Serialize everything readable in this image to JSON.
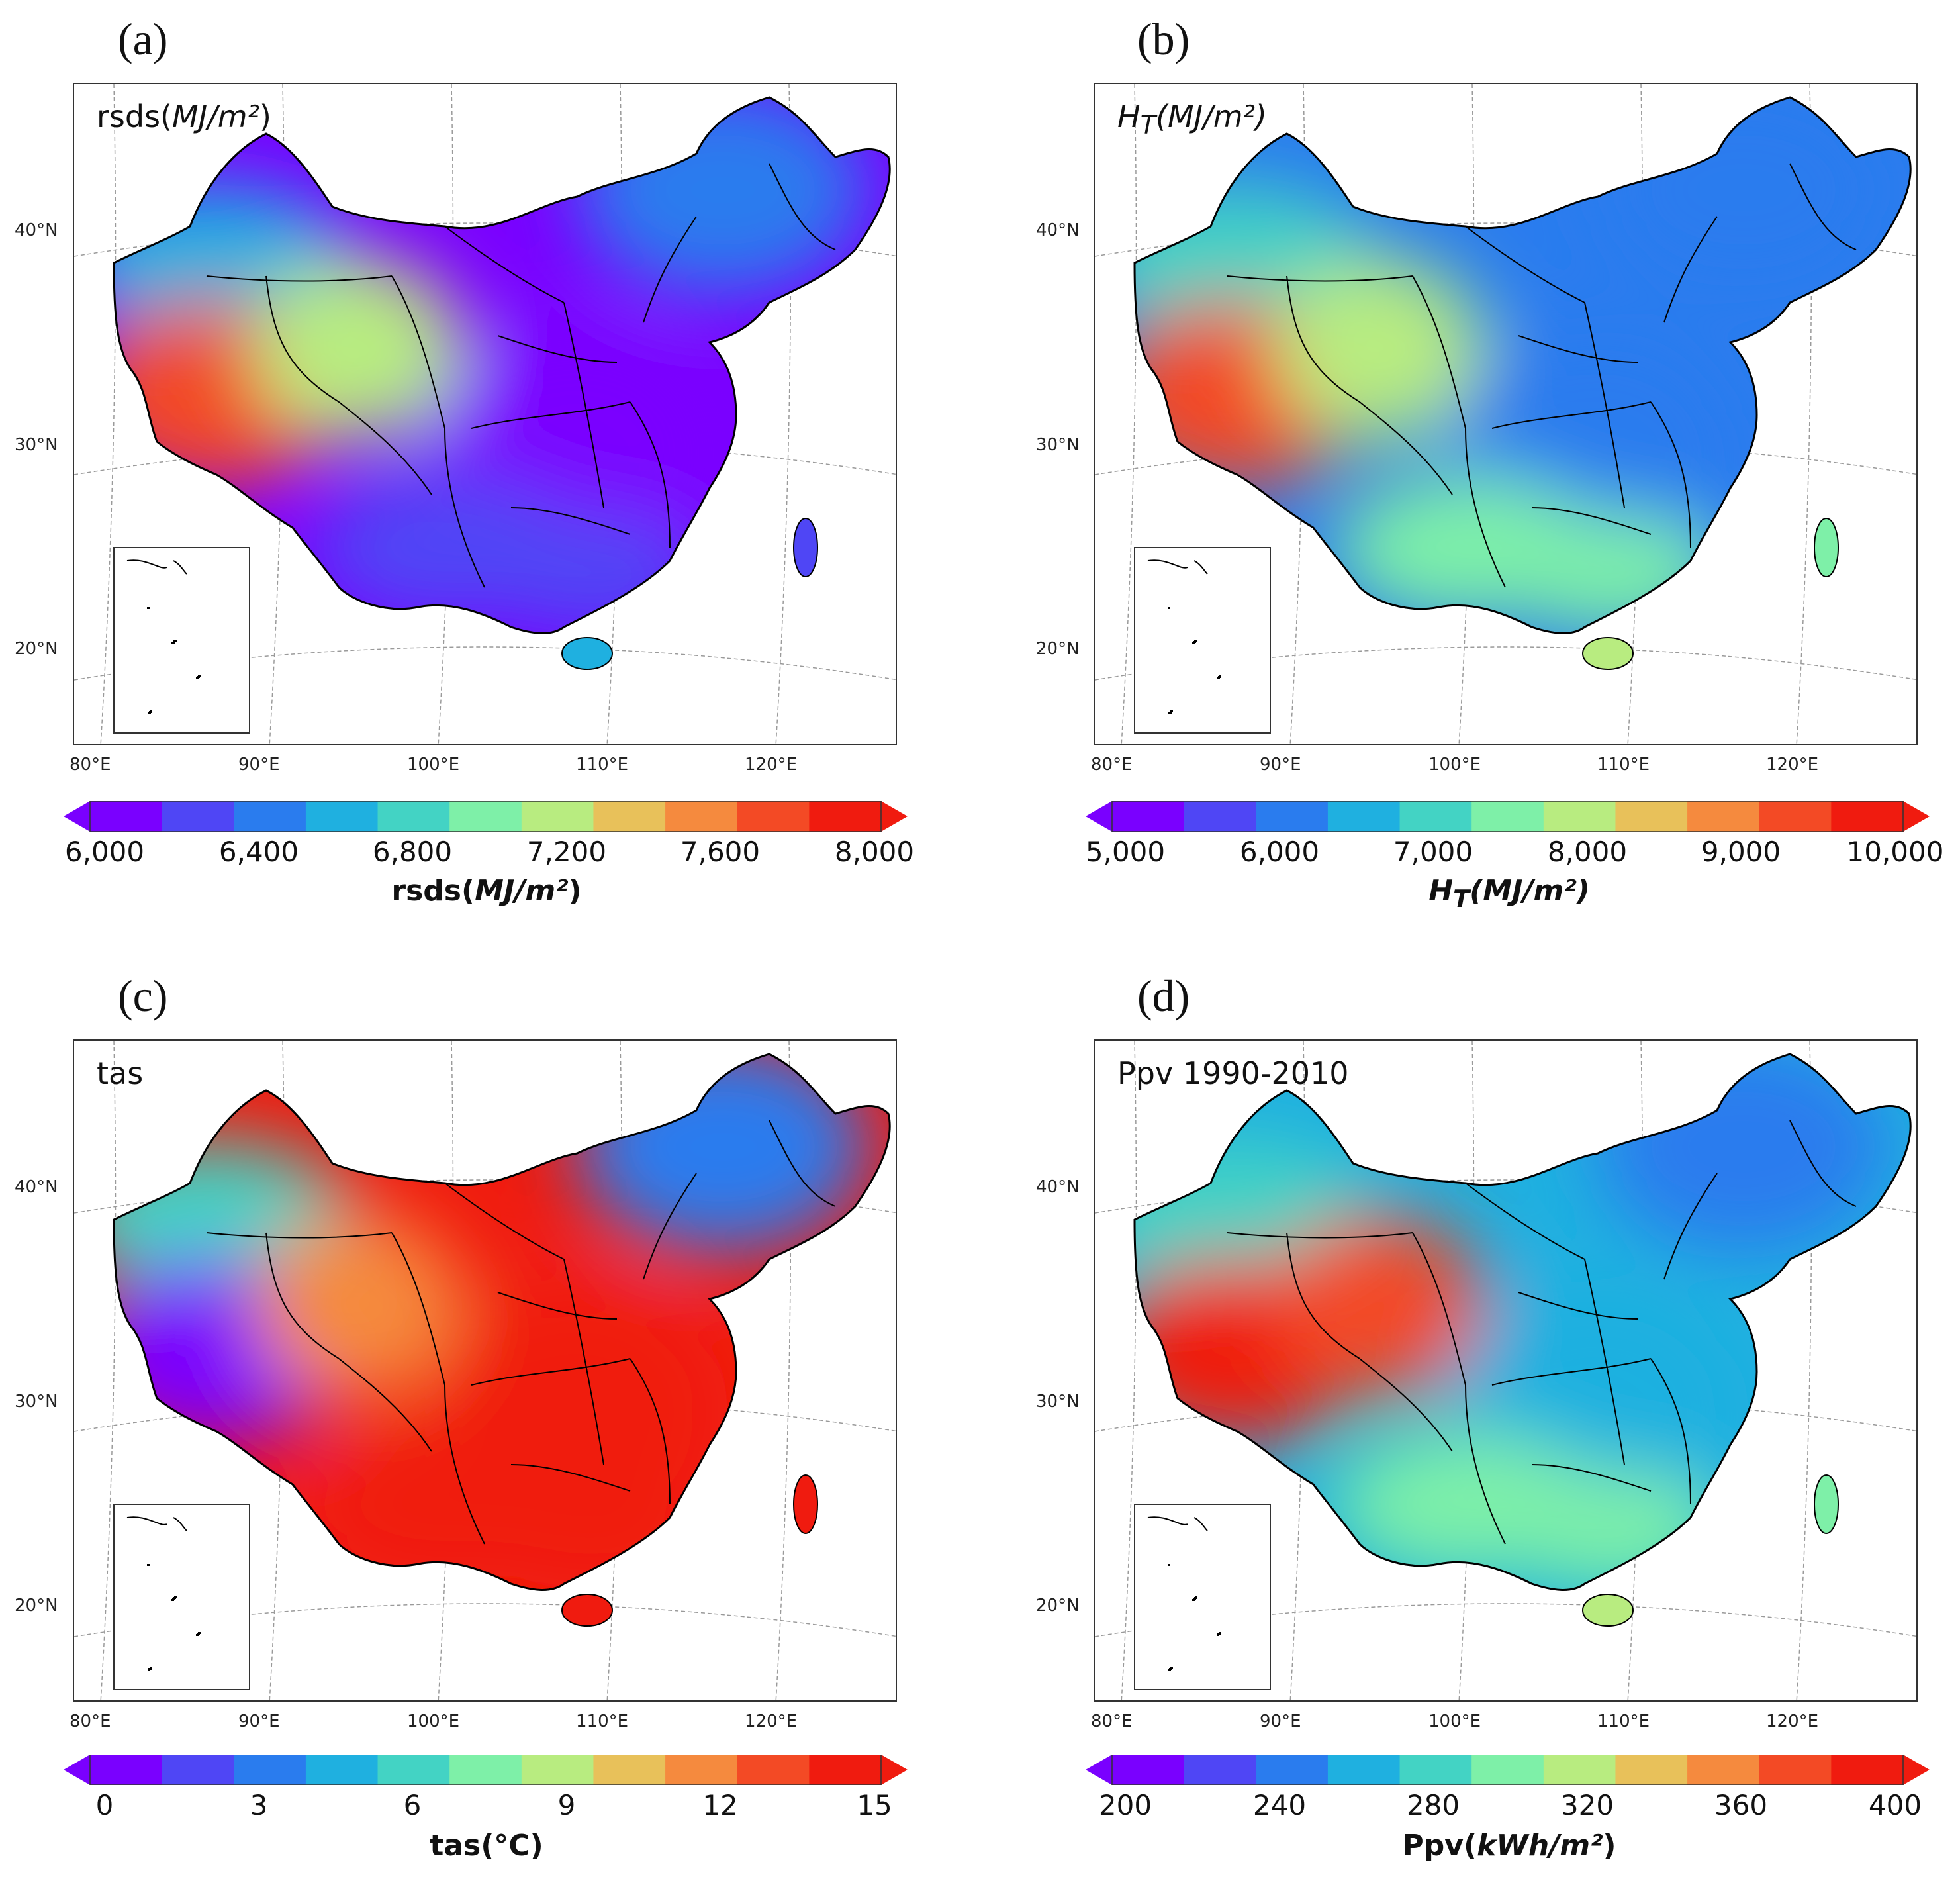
{
  "colors": {
    "colormap": [
      "#7a00ff",
      "#4f46f5",
      "#2a7cee",
      "#1fb0e0",
      "#43d3c4",
      "#7ef0a8",
      "#b8ec80",
      "#e8c15a",
      "#f58a3e",
      "#f34a25",
      "#f01b0f"
    ],
    "border": "#000000",
    "grid": "#9a9a9a",
    "inset_bg": "#ffffff"
  },
  "axis_labels": {
    "lat": [
      "40°N",
      "30°N",
      "20°N"
    ],
    "lon": [
      "80°E",
      "90°E",
      "100°E",
      "110°E",
      "120°E"
    ]
  },
  "panels": [
    {
      "letter": "(a)",
      "map_title": "rsds(MJ/m²)",
      "map_title_base": "rsds(",
      "map_title_unit": "MJ/m²",
      "map_title_close": ")",
      "colorbar": {
        "ticks": [
          "6,000",
          "6,400",
          "6,800",
          "7,200",
          "7,600",
          "8,000"
        ],
        "label_base": "rsds(",
        "label_unit": "MJ/m²",
        "label_close": ")",
        "min": 6000,
        "max": 8000
      },
      "field": {
        "west_high": 0.92,
        "central_belt": 0.55,
        "north": 0.25,
        "east": 0.02,
        "south": 0.05,
        "hainan": 0.25,
        "taiwan": 0.08
      }
    },
    {
      "letter": "(b)",
      "map_title": "H_T(MJ/m²)",
      "map_title_base": "H",
      "map_title_sub": "T",
      "map_title_unit": "(MJ/m²)",
      "colorbar": {
        "ticks": [
          "5,000",
          "6,000",
          "7,000",
          "8,000",
          "9,000",
          "10,000"
        ],
        "label_base": "H",
        "label_sub": "T",
        "label_unit": "(MJ/m²)",
        "min": 5000,
        "max": 10000
      },
      "field": {
        "west_high": 0.9,
        "central_belt": 0.62,
        "north": 0.35,
        "east": 0.2,
        "south": 0.5,
        "hainan": 0.55,
        "taiwan": 0.5
      }
    },
    {
      "letter": "(c)",
      "map_title": "tas",
      "colorbar": {
        "ticks": [
          "0",
          "3",
          "6",
          "9",
          "12",
          "15"
        ],
        "label_base": "tas(°C)",
        "min": 0,
        "max": 15
      },
      "field": {
        "west_high": 0.02,
        "central_belt": 0.8,
        "north": 0.35,
        "east": 0.95,
        "south": 0.98,
        "hainan": 0.98,
        "taiwan": 0.98
      }
    },
    {
      "letter": "(d)",
      "map_title": "Ppv 1990-2010",
      "colorbar": {
        "ticks": [
          "200",
          "240",
          "280",
          "320",
          "360",
          "400"
        ],
        "label_base": "Ppv(",
        "label_unit": "kWh/m²",
        "label_close": ")",
        "min": 200,
        "max": 400
      },
      "field": {
        "west_high": 0.97,
        "central_belt": 0.85,
        "north": 0.4,
        "east": 0.28,
        "south": 0.45,
        "hainan": 0.55,
        "taiwan": 0.5
      }
    }
  ]
}
